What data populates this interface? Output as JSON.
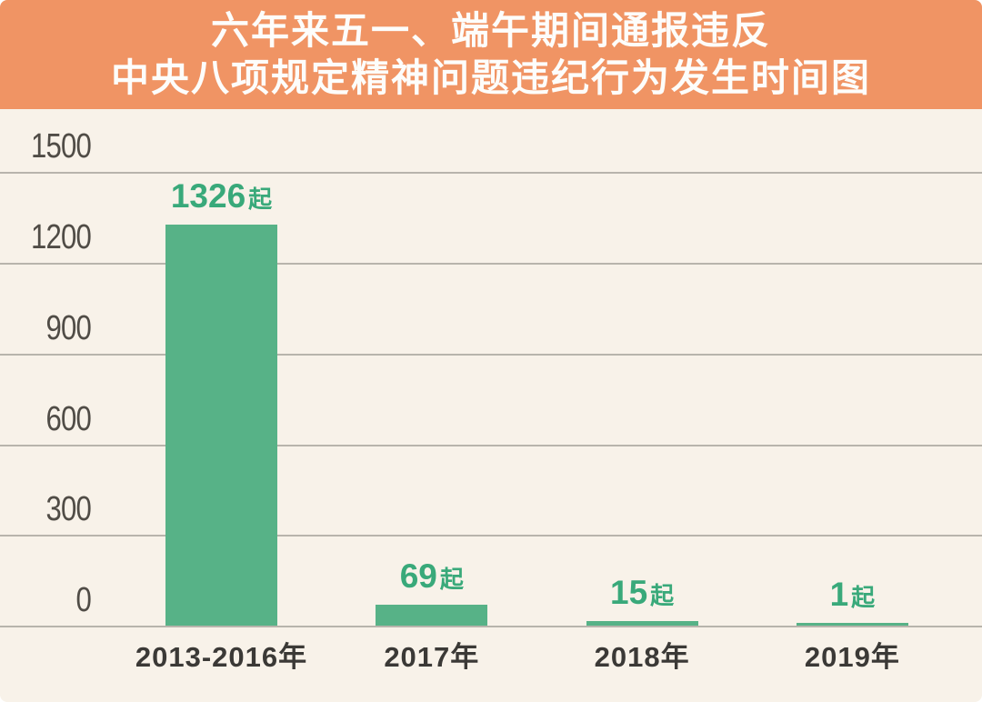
{
  "title": {
    "line1": "六年来五一、端午期间通报违反",
    "line2": "中央八项规定精神问题违纪行为发生时间图"
  },
  "colors": {
    "header_bg": "#F09464",
    "title_text": "#FDFDFB",
    "chart_background": "#F8F2E9",
    "gridline": "#A39F97",
    "bar_fill": "#57B287",
    "value_label": "#39A97A",
    "y_axis_label": "#504C46",
    "x_axis_label": "#3B3936"
  },
  "chart_data": {
    "type": "bar",
    "title": "六年来五一、端午期间通报违反中央八项规定精神问题违纪行为发生时间图",
    "categories": [
      "2013-2016年",
      "2017年",
      "2018年",
      "2019年"
    ],
    "values": [
      1326,
      69,
      15,
      1
    ],
    "value_labels": [
      "1326起",
      "69起",
      "15起",
      "1起"
    ],
    "unit": "起",
    "xlabel": "",
    "ylabel": "",
    "y_ticks": [
      1500,
      1200,
      900,
      600,
      300,
      0
    ],
    "ylim": [
      0,
      1500
    ],
    "grid": true,
    "legend": null
  }
}
